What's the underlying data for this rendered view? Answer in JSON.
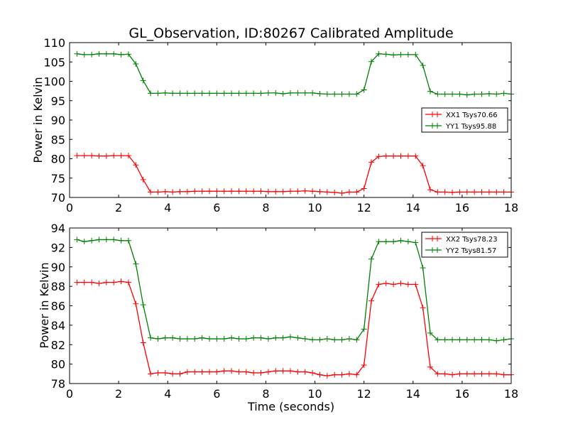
{
  "chart_data": [
    {
      "type": "line",
      "title": "GL_Observation, ID:80267 Calibrated Amplitude",
      "xlabel": "",
      "ylabel": "Power in Kelvin",
      "xlim": [
        0,
        18
      ],
      "ylim": [
        70,
        110
      ],
      "xticks": [
        0,
        2,
        4,
        6,
        8,
        10,
        12,
        14,
        16,
        18
      ],
      "yticks": [
        70,
        75,
        80,
        85,
        90,
        95,
        100,
        105,
        110
      ],
      "legend_position": "right",
      "x_start": 0.3,
      "x_step": 0.3,
      "series": [
        {
          "name": "XX1 Tsys70.66",
          "color": "#ff0000",
          "values": [
            80.8,
            80.8,
            80.8,
            80.7,
            80.7,
            80.8,
            80.8,
            80.8,
            78.4,
            74.6,
            71.4,
            71.4,
            71.5,
            71.4,
            71.5,
            71.5,
            71.6,
            71.6,
            71.6,
            71.6,
            71.6,
            71.6,
            71.6,
            71.6,
            71.6,
            71.6,
            71.5,
            71.5,
            71.5,
            71.6,
            71.6,
            71.7,
            71.6,
            71.5,
            71.4,
            71.3,
            71.1,
            71.4,
            71.4,
            72.3,
            79.1,
            80.6,
            80.7,
            80.7,
            80.7,
            80.7,
            80.7,
            78.2,
            72.0,
            71.4,
            71.4,
            71.3,
            71.4,
            71.4,
            71.4,
            71.4,
            71.4,
            71.4,
            71.4,
            71.4
          ]
        },
        {
          "name": "YY1 Tsys95.88",
          "color": "#008000",
          "values": [
            107.1,
            106.9,
            106.9,
            107.1,
            107.1,
            107.1,
            106.9,
            107.0,
            104.5,
            100.2,
            96.9,
            96.9,
            97.0,
            96.9,
            96.9,
            96.9,
            96.9,
            96.9,
            96.9,
            96.9,
            96.9,
            96.9,
            96.9,
            96.9,
            96.9,
            96.9,
            97.0,
            97.0,
            96.8,
            97.0,
            97.0,
            97.0,
            97.0,
            96.8,
            96.7,
            96.7,
            96.7,
            96.7,
            96.7,
            97.8,
            105.1,
            107.1,
            107.0,
            106.8,
            106.9,
            106.9,
            106.9,
            104.1,
            97.4,
            96.7,
            96.7,
            96.7,
            96.7,
            96.5,
            96.7,
            96.7,
            96.8,
            96.7,
            96.9,
            96.7
          ]
        }
      ]
    },
    {
      "type": "line",
      "title": "",
      "xlabel": "Time (seconds)",
      "ylabel": "Power in Kelvin",
      "xlim": [
        0,
        18
      ],
      "ylim": [
        78,
        94
      ],
      "xticks": [
        0,
        2,
        4,
        6,
        8,
        10,
        12,
        14,
        16,
        18
      ],
      "yticks": [
        78,
        80,
        82,
        84,
        86,
        88,
        90,
        92,
        94
      ],
      "legend_position": "top-right",
      "x_start": 0.3,
      "x_step": 0.3,
      "series": [
        {
          "name": "XX2 Tsys78.23",
          "color": "#ff0000",
          "values": [
            88.4,
            88.4,
            88.4,
            88.3,
            88.4,
            88.4,
            88.5,
            88.4,
            86.2,
            82.2,
            79.0,
            79.1,
            79.1,
            79.0,
            79.0,
            79.2,
            79.2,
            79.2,
            79.2,
            79.2,
            79.3,
            79.3,
            79.2,
            79.2,
            79.1,
            79.1,
            79.2,
            79.3,
            79.3,
            79.3,
            79.2,
            79.2,
            79.1,
            78.9,
            78.8,
            78.9,
            78.9,
            79.0,
            78.9,
            79.9,
            86.5,
            88.2,
            88.3,
            88.2,
            88.3,
            88.2,
            88.2,
            85.8,
            79.7,
            79.0,
            79.0,
            78.9,
            79.0,
            79.0,
            79.0,
            79.0,
            79.0,
            79.0,
            78.9,
            78.9
          ]
        },
        {
          "name": "YY2 Tsys81.57",
          "color": "#008000",
          "values": [
            92.8,
            92.6,
            92.7,
            92.8,
            92.8,
            92.8,
            92.7,
            92.7,
            90.3,
            86.1,
            82.7,
            82.6,
            82.7,
            82.7,
            82.6,
            82.6,
            82.6,
            82.7,
            82.6,
            82.6,
            82.6,
            82.7,
            82.6,
            82.6,
            82.7,
            82.7,
            82.6,
            82.7,
            82.7,
            82.8,
            82.7,
            82.6,
            82.5,
            82.5,
            82.6,
            82.5,
            82.5,
            82.6,
            82.5,
            83.6,
            90.8,
            92.6,
            92.6,
            92.6,
            92.7,
            92.6,
            92.5,
            89.9,
            83.2,
            82.5,
            82.5,
            82.5,
            82.5,
            82.5,
            82.5,
            82.5,
            82.5,
            82.4,
            82.5,
            82.6
          ]
        }
      ]
    }
  ]
}
